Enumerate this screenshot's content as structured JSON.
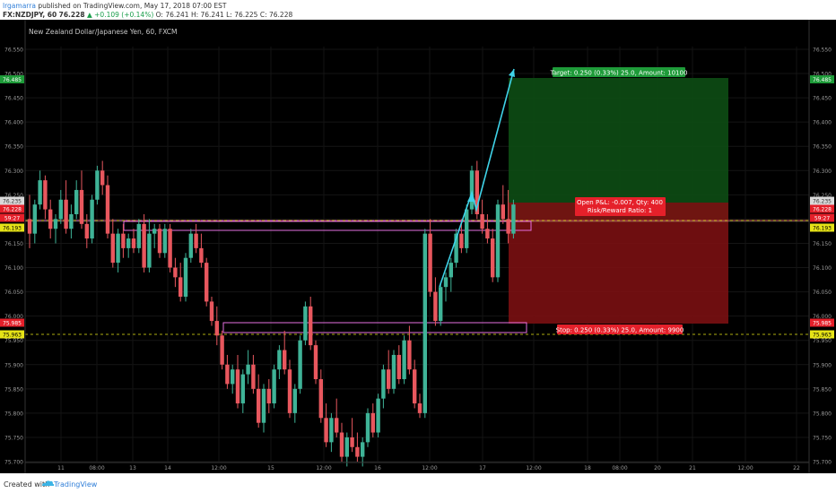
{
  "header": {
    "user": "lrgamarra",
    "published_text": "published on TradingView.com, May 17, 2018 07:00 EST",
    "symbol": "FX:NZDJPY, 60",
    "last": "76.228",
    "change": "+0.109 (+0.14%)",
    "ohlc": "O: 76.241  H: 76.241  L: 76.225  C: 76.228"
  },
  "chart": {
    "title": "New Zealand Dollar/Japanese Yen, 60, FXCM",
    "colors": {
      "up": "#3fb397",
      "down": "#e8575e",
      "target": "#0d4d14",
      "stop": "#7a0f12",
      "arrow": "#3fd3e8",
      "dashed": "#e6e317",
      "pink": "#e46fe0"
    },
    "price_ticks": [
      "76.550",
      "76.500",
      "76.450",
      "76.400",
      "76.350",
      "76.300",
      "76.250",
      "76.200",
      "76.150",
      "76.100",
      "76.050",
      "76.000",
      "75.950",
      "75.900",
      "75.850",
      "75.800",
      "75.750",
      "75.700"
    ],
    "time_ticks": [
      "11",
      "08:00",
      "13",
      "14",
      "12:00",
      "15",
      "12:00",
      "16",
      "12:00",
      "17",
      "12:00",
      "18",
      "08:00",
      "20",
      "21",
      "12:00",
      "22"
    ],
    "price_tags": {
      "target": "76.485",
      "entry": "76.235",
      "current": "76.228",
      "countdown": "59:27",
      "support_high": "76.193",
      "stop": "75.985",
      "support_low": "75.963"
    },
    "target_label": "Target: 0.250 (0.33%) 25.0, Amount: 10100",
    "open_label_1": "Open P&L: -0.007, Qty: 400",
    "open_label_2": "Risk/Reward Ratio: 1",
    "stop_label": "Stop: 0.250 (0.33%) 25.0, Amount: 9900"
  },
  "chart_data": {
    "type": "candlestick",
    "title": "New Zealand Dollar/Japanese Yen, 60, FXCM",
    "ylim": [
      75.69,
      76.55
    ],
    "candles": [
      [
        76.2,
        76.25,
        76.14,
        76.17
      ],
      [
        76.17,
        76.24,
        76.15,
        76.23
      ],
      [
        76.23,
        76.3,
        76.22,
        76.28
      ],
      [
        76.28,
        76.29,
        76.2,
        76.22
      ],
      [
        76.22,
        76.24,
        76.16,
        76.18
      ],
      [
        76.18,
        76.21,
        76.15,
        76.2
      ],
      [
        76.2,
        76.26,
        76.19,
        76.24
      ],
      [
        76.24,
        76.28,
        76.17,
        76.18
      ],
      [
        76.18,
        76.23,
        76.16,
        76.21
      ],
      [
        76.21,
        76.28,
        76.2,
        76.26
      ],
      [
        76.26,
        76.3,
        76.18,
        76.19
      ],
      [
        76.19,
        76.21,
        76.14,
        76.16
      ],
      [
        76.16,
        76.25,
        76.15,
        76.24
      ],
      [
        76.24,
        76.31,
        76.23,
        76.3
      ],
      [
        76.3,
        76.32,
        76.25,
        76.27
      ],
      [
        76.27,
        76.29,
        76.16,
        76.17
      ],
      [
        76.17,
        76.2,
        76.1,
        76.11
      ],
      [
        76.11,
        76.18,
        76.09,
        76.17
      ],
      [
        76.17,
        76.19,
        76.12,
        76.14
      ],
      [
        76.14,
        76.17,
        76.12,
        76.16
      ],
      [
        76.16,
        76.18,
        76.13,
        76.14
      ],
      [
        76.14,
        76.2,
        76.13,
        76.19
      ],
      [
        76.19,
        76.21,
        76.09,
        76.1
      ],
      [
        76.1,
        76.2,
        76.09,
        76.17
      ],
      [
        76.17,
        76.19,
        76.14,
        76.18
      ],
      [
        76.18,
        76.19,
        76.12,
        76.13
      ],
      [
        76.13,
        76.19,
        76.12,
        76.18
      ],
      [
        76.18,
        76.19,
        76.09,
        76.1
      ],
      [
        76.1,
        76.12,
        76.06,
        76.08
      ],
      [
        76.08,
        76.11,
        76.03,
        76.04
      ],
      [
        76.04,
        76.13,
        76.03,
        76.12
      ],
      [
        76.12,
        76.18,
        76.11,
        76.17
      ],
      [
        76.17,
        76.19,
        76.13,
        76.14
      ],
      [
        76.14,
        76.17,
        76.1,
        76.11
      ],
      [
        76.11,
        76.12,
        76.02,
        76.03
      ],
      [
        76.03,
        76.04,
        75.98,
        75.99
      ],
      [
        75.99,
        76.02,
        75.94,
        75.96
      ],
      [
        75.96,
        75.97,
        75.89,
        75.9
      ],
      [
        75.9,
        75.92,
        75.85,
        75.86
      ],
      [
        75.86,
        75.9,
        75.84,
        75.89
      ],
      [
        75.89,
        75.92,
        75.81,
        75.82
      ],
      [
        75.82,
        75.89,
        75.8,
        75.88
      ],
      [
        75.88,
        75.93,
        75.86,
        75.9
      ],
      [
        75.9,
        75.92,
        75.84,
        75.85
      ],
      [
        75.85,
        75.88,
        75.77,
        75.78
      ],
      [
        75.78,
        75.86,
        75.76,
        75.85
      ],
      [
        75.85,
        75.87,
        75.8,
        75.82
      ],
      [
        75.82,
        75.9,
        75.81,
        75.89
      ],
      [
        75.89,
        75.94,
        75.87,
        75.93
      ],
      [
        75.93,
        75.97,
        75.88,
        75.89
      ],
      [
        75.89,
        75.91,
        75.79,
        75.8
      ],
      [
        75.8,
        75.86,
        75.78,
        75.85
      ],
      [
        75.85,
        75.96,
        75.84,
        75.95
      ],
      [
        75.95,
        76.03,
        75.94,
        76.02
      ],
      [
        76.02,
        76.04,
        75.93,
        75.94
      ],
      [
        75.94,
        75.95,
        75.86,
        75.87
      ],
      [
        75.87,
        75.89,
        75.78,
        75.79
      ],
      [
        75.79,
        75.82,
        75.73,
        75.74
      ],
      [
        75.74,
        75.8,
        75.72,
        75.79
      ],
      [
        75.79,
        75.83,
        75.75,
        75.76
      ],
      [
        75.76,
        75.78,
        75.7,
        75.71
      ],
      [
        75.71,
        75.76,
        75.69,
        75.75
      ],
      [
        75.75,
        75.79,
        75.72,
        75.73
      ],
      [
        75.73,
        75.76,
        75.7,
        75.71
      ],
      [
        75.71,
        75.75,
        75.69,
        75.74
      ],
      [
        75.74,
        75.81,
        75.73,
        75.8
      ],
      [
        75.8,
        75.82,
        75.75,
        75.76
      ],
      [
        75.76,
        75.84,
        75.75,
        75.83
      ],
      [
        75.83,
        75.9,
        75.81,
        75.89
      ],
      [
        75.89,
        75.93,
        75.84,
        75.85
      ],
      [
        75.85,
        75.93,
        75.84,
        75.92
      ],
      [
        75.92,
        75.94,
        75.86,
        75.87
      ],
      [
        75.87,
        75.96,
        75.86,
        75.95
      ],
      [
        75.95,
        75.98,
        75.88,
        75.89
      ],
      [
        75.89,
        75.91,
        75.81,
        75.82
      ],
      [
        75.82,
        75.84,
        75.79,
        75.8
      ],
      [
        75.8,
        76.18,
        75.79,
        76.17
      ],
      [
        76.17,
        76.2,
        76.04,
        76.05
      ],
      [
        76.05,
        76.08,
        75.98,
        75.99
      ],
      [
        75.99,
        76.07,
        75.98,
        76.06
      ],
      [
        76.06,
        76.09,
        76.03,
        76.08
      ],
      [
        76.08,
        76.12,
        76.05,
        76.11
      ],
      [
        76.11,
        76.18,
        76.1,
        76.17
      ],
      [
        76.17,
        76.2,
        76.13,
        76.14
      ],
      [
        76.14,
        76.23,
        76.13,
        76.22
      ],
      [
        76.22,
        76.31,
        76.21,
        76.3
      ],
      [
        76.3,
        76.32,
        76.2,
        76.21
      ],
      [
        76.21,
        76.24,
        76.17,
        76.18
      ],
      [
        76.18,
        76.21,
        76.15,
        76.16
      ],
      [
        76.16,
        76.18,
        76.07,
        76.08
      ],
      [
        76.08,
        76.24,
        76.07,
        76.23
      ],
      [
        76.23,
        76.27,
        76.19,
        76.2
      ],
      [
        76.2,
        76.26,
        76.15,
        76.17
      ],
      [
        76.17,
        76.24,
        76.16,
        76.23
      ]
    ]
  },
  "footer": {
    "created_with": "Created with",
    "brand": "TradingView"
  }
}
